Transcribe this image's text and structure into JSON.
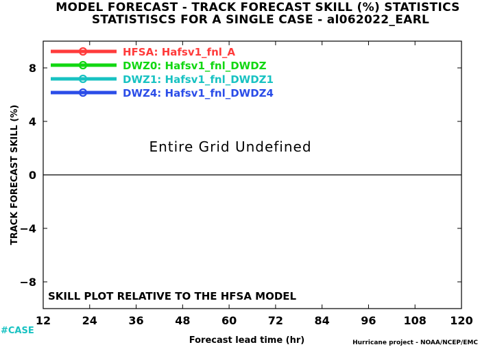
{
  "chart_data": {
    "type": "line",
    "title": "MODEL FORECAST - TRACK FORECAST SKILL (%) STATISTICS",
    "subtitle": "STATISTISCS FOR A SINGLE CASE - al062022_EARL",
    "xlabel": "Forecast lead time (hr)",
    "ylabel": "TRACK FORECAST SKILL (%)",
    "xlim": [
      12,
      120
    ],
    "ylim": [
      -10,
      10
    ],
    "xticks": [
      12,
      24,
      36,
      48,
      60,
      72,
      84,
      96,
      108,
      120
    ],
    "yticks": [
      -8,
      -4,
      0,
      4,
      8
    ],
    "ytick_labels": [
      "−8",
      "−4",
      "0",
      "4",
      "8"
    ],
    "reference_line": 0,
    "legend_position": "top-left",
    "series": [
      {
        "name": "HFSA:",
        "model": "Hafsv1_fnl_A",
        "color": "#ff3b3b",
        "values": []
      },
      {
        "name": "DWZ0:",
        "model": "Hafsv1_fnl_DWDZ",
        "color": "#12d712",
        "values": []
      },
      {
        "name": "DWZ1:",
        "model": "Hafsv1_fnl_DWDZ1",
        "color": "#18c2c2",
        "values": []
      },
      {
        "name": "DWZ4:",
        "model": "Hafsv1_fnl_DWDZ4",
        "color": "#2b4de8",
        "values": []
      }
    ],
    "annotations": {
      "undefined_note": "Entire Grid Undefined",
      "skill_note": "SKILL PLOT RELATIVE TO THE HFSA MODEL"
    }
  },
  "footer": {
    "case_label": "#CASE",
    "case_color": "#18c2c2",
    "credit": "Hurricane project - NOAA/NCEP/EMC"
  }
}
